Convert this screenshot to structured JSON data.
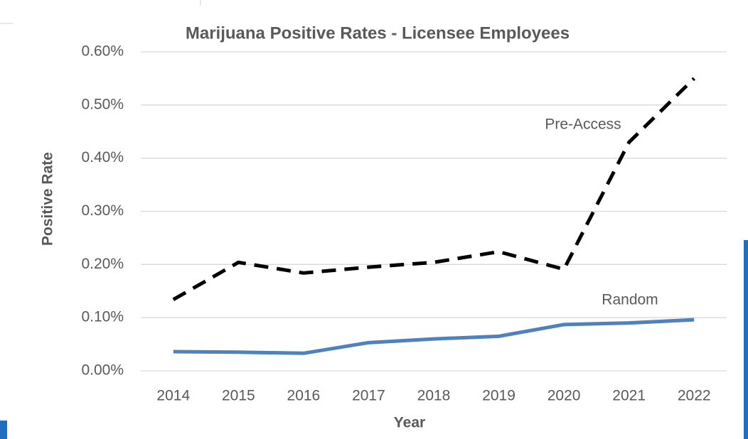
{
  "chart_data": {
    "type": "line",
    "title": "Marijuana Positive Rates - Licensee Employees",
    "x_label": "Year",
    "y_label": "Positive Rate",
    "categories": [
      "2014",
      "2015",
      "2016",
      "2017",
      "2018",
      "2019",
      "2020",
      "2021",
      "2022"
    ],
    "series": [
      {
        "name": "Pre-Access",
        "color": "#000000",
        "dashed": true,
        "values": [
          0.134,
          0.204,
          0.184,
          0.195,
          0.204,
          0.224,
          0.191,
          0.43,
          0.55
        ]
      },
      {
        "name": "Random",
        "color": "#4f81bd",
        "dashed": false,
        "values": [
          0.036,
          0.035,
          0.033,
          0.053,
          0.06,
          0.065,
          0.087,
          0.09,
          0.096
        ]
      }
    ],
    "ylim": [
      0,
      0.6
    ],
    "yticks": [
      {
        "value": 0,
        "label": "0.00%"
      },
      {
        "value": 0.1,
        "label": "0.10%"
      },
      {
        "value": 0.2,
        "label": "0.20%"
      },
      {
        "value": 0.3,
        "label": "0.30%"
      },
      {
        "value": 0.4,
        "label": "0.40%"
      },
      {
        "value": 0.5,
        "label": "0.50%"
      },
      {
        "value": 0.6,
        "label": "0.60%"
      }
    ],
    "grid": true
  }
}
